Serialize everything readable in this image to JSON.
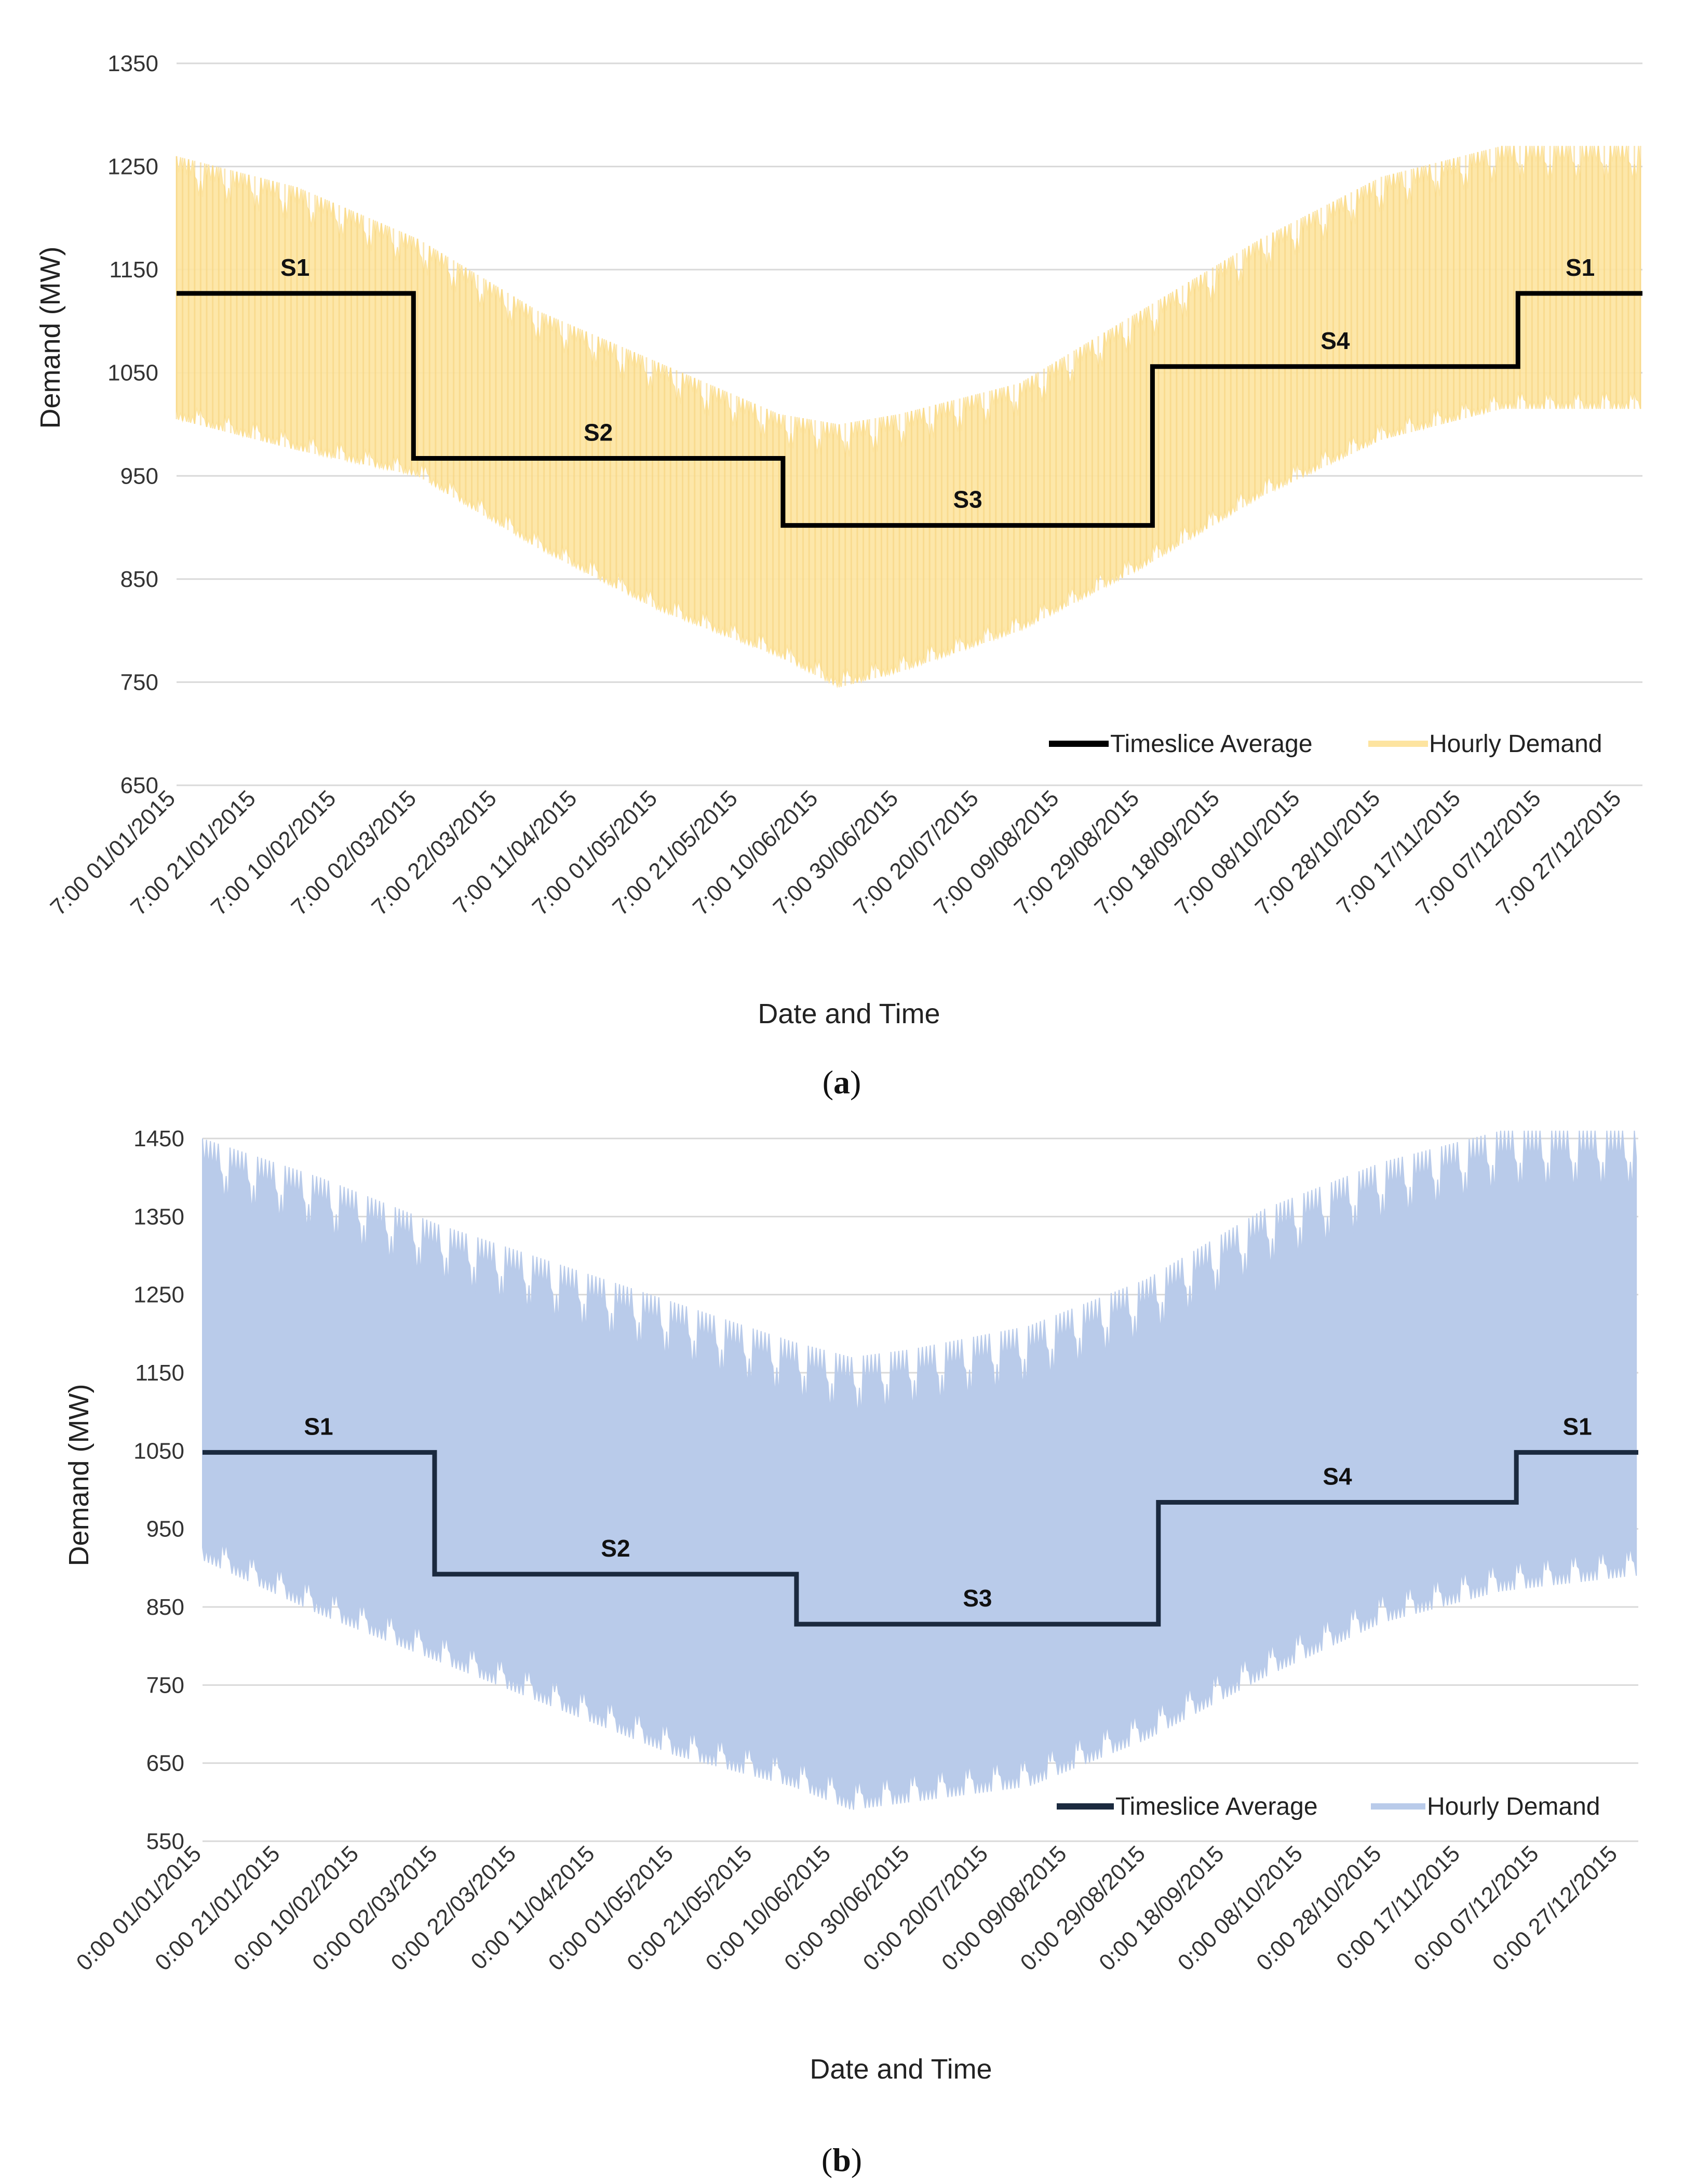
{
  "chart_data": [
    {
      "id": "a",
      "type": "line",
      "caption_letter": "a",
      "xlabel": "Date and Time",
      "ylabel": "Demand (MW)",
      "ylim": [
        650,
        1350
      ],
      "yticks": [
        650,
        750,
        850,
        950,
        1050,
        1150,
        1250,
        1350
      ],
      "gridlines": true,
      "xticks": [
        "7:00 01/01/2015",
        "7:00 21/01/2015",
        "7:00 10/02/2015",
        "7:00 02/03/2015",
        "7:00 22/03/2015",
        "7:00 11/04/2015",
        "7:00 01/05/2015",
        "7:00 21/05/2015",
        "7:00 10/06/2015",
        "7:00 30/06/2015",
        "7:00 20/07/2015",
        "7:00 09/08/2015",
        "7:00 29/08/2015",
        "7:00 18/09/2015",
        "7:00 08/10/2015",
        "7:00 28/10/2015",
        "7:00 17/11/2015",
        "7:00 07/12/2015",
        "7:00 27/12/2015"
      ],
      "x_range_days": [
        0,
        365
      ],
      "legend_position": "bottom-right",
      "series": [
        {
          "name": "Hourly Demand",
          "color": "#fde4a0",
          "style": "hourly-band",
          "envelope_days": [
            0,
            30,
            60,
            90,
            120,
            150,
            165,
            180,
            210,
            240,
            270,
            300,
            330,
            364
          ],
          "envelope_upper": [
            1260,
            1230,
            1180,
            1110,
            1060,
            1010,
            1000,
            1010,
            1040,
            1110,
            1180,
            1240,
            1270,
            1270
          ],
          "envelope_lower": [
            1005,
            975,
            950,
            880,
            820,
            775,
            745,
            760,
            800,
            860,
            930,
            985,
            1015,
            1015
          ]
        },
        {
          "name": "Timeslice Average",
          "color": "#000000",
          "style": "step",
          "segments": [
            {
              "label": "S1",
              "start_day": 0,
              "end_day": 59,
              "value": 1127
            },
            {
              "label": "S2",
              "start_day": 59,
              "end_day": 151,
              "value": 967
            },
            {
              "label": "S3",
              "start_day": 151,
              "end_day": 243,
              "value": 902
            },
            {
              "label": "S4",
              "start_day": 243,
              "end_day": 334,
              "value": 1056
            },
            {
              "label": "S1",
              "start_day": 334,
              "end_day": 365,
              "value": 1127
            }
          ]
        }
      ]
    },
    {
      "id": "b",
      "type": "line",
      "caption_letter": "b",
      "xlabel": "Date and Time",
      "ylabel": "Demand (MW)",
      "ylim": [
        550,
        1450
      ],
      "yticks": [
        550,
        650,
        750,
        850,
        950,
        1050,
        1150,
        1250,
        1350,
        1450
      ],
      "gridlines": true,
      "xticks": [
        "0:00 01/01/2015",
        "0:00 21/01/2015",
        "0:00 10/02/2015",
        "0:00 02/03/2015",
        "0:00 22/03/2015",
        "0:00 11/04/2015",
        "0:00 01/05/2015",
        "0:00 21/05/2015",
        "0:00 10/06/2015",
        "0:00 30/06/2015",
        "0:00 20/07/2015",
        "0:00 09/08/2015",
        "0:00 29/08/2015",
        "0:00 18/09/2015",
        "0:00 08/10/2015",
        "0:00 28/10/2015",
        "0:00 17/11/2015",
        "0:00 07/12/2015",
        "0:00 27/12/2015"
      ],
      "x_range_days": [
        0,
        365
      ],
      "legend_position": "bottom-right",
      "series": [
        {
          "name": "Hourly Demand",
          "color": "#b9cbea",
          "style": "hourly-band",
          "envelope_days": [
            0,
            30,
            60,
            90,
            120,
            150,
            165,
            180,
            210,
            240,
            270,
            300,
            330,
            364
          ],
          "envelope_upper": [
            1450,
            1400,
            1340,
            1290,
            1240,
            1190,
            1170,
            1180,
            1210,
            1270,
            1360,
            1420,
            1460,
            1460
          ],
          "envelope_lower": [
            910,
            840,
            780,
            720,
            660,
            620,
            590,
            600,
            620,
            680,
            760,
            830,
            870,
            890
          ]
        },
        {
          "name": "Timeslice Average",
          "color": "#1b2a3f",
          "style": "step",
          "segments": [
            {
              "label": "S1",
              "start_day": 0,
              "end_day": 59,
              "value": 1048
            },
            {
              "label": "S2",
              "start_day": 59,
              "end_day": 151,
              "value": 892
            },
            {
              "label": "S3",
              "start_day": 151,
              "end_day": 243,
              "value": 828
            },
            {
              "label": "S4",
              "start_day": 243,
              "end_day": 334,
              "value": 984
            },
            {
              "label": "S1",
              "start_day": 334,
              "end_day": 365,
              "value": 1048
            }
          ]
        }
      ]
    }
  ]
}
